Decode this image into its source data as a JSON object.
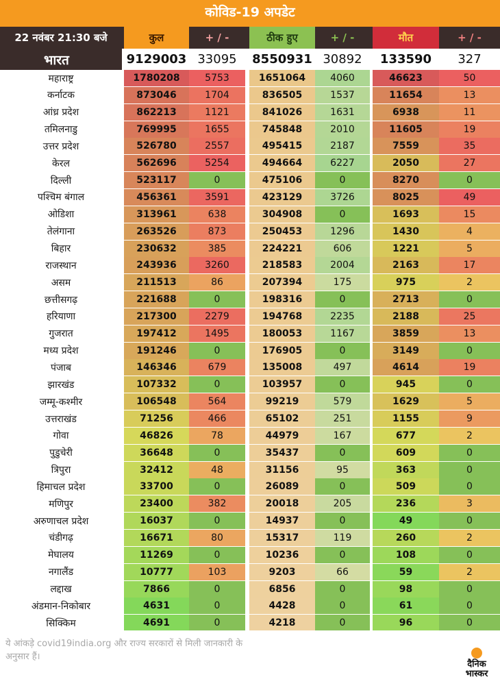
{
  "title": "कोविड-19 अपडेट",
  "header": {
    "date": "22 नवंबर  21:30 बजे",
    "cols": [
      "कुल",
      "+ / -",
      "ठीक हुए",
      "+ / -",
      "मौत",
      "+ / -"
    ]
  },
  "colors": {
    "orange": "#f59a1f",
    "header_dark": "#3a2c2a",
    "header_total": "#f59a1f",
    "header_delta": "#f2a0a0",
    "header_recovered": "#8cc152",
    "header_deaths": "#d12d3a"
  },
  "india": {
    "name": "भारत",
    "values": [
      "9129003",
      "33095",
      "8550931",
      "30892",
      "133590",
      "327"
    ]
  },
  "rows": [
    {
      "name": "महाराष्ट्र",
      "values": [
        "1780208",
        "5753",
        "1651064",
        "4060",
        "46623",
        "50"
      ]
    },
    {
      "name": "कर्नाटक",
      "values": [
        "873046",
        "1704",
        "836505",
        "1537",
        "11654",
        "13"
      ]
    },
    {
      "name": "आंध्र प्रदेश",
      "values": [
        "862213",
        "1121",
        "841026",
        "1631",
        "6938",
        "11"
      ]
    },
    {
      "name": "तमिलनाडु",
      "values": [
        "769995",
        "1655",
        "745848",
        "2010",
        "11605",
        "19"
      ]
    },
    {
      "name": "उत्तर प्रदेश",
      "values": [
        "526780",
        "2557",
        "495415",
        "2187",
        "7559",
        "35"
      ]
    },
    {
      "name": "केरल",
      "values": [
        "562696",
        "5254",
        "494664",
        "6227",
        "2050",
        "27"
      ]
    },
    {
      "name": "दिल्ली",
      "values": [
        "523117",
        "0",
        "475106",
        "0",
        "8270",
        "0"
      ]
    },
    {
      "name": "पश्चिम बंगाल",
      "values": [
        "456361",
        "3591",
        "423129",
        "3726",
        "8025",
        "49"
      ]
    },
    {
      "name": "ओडिशा",
      "values": [
        "313961",
        "638",
        "304908",
        "0",
        "1693",
        "15"
      ]
    },
    {
      "name": "तेलंगाना",
      "values": [
        "263526",
        "873",
        "250453",
        "1296",
        "1430",
        "4"
      ]
    },
    {
      "name": "बिहार",
      "values": [
        "230632",
        "385",
        "224221",
        "606",
        "1221",
        "5"
      ]
    },
    {
      "name": "राजस्थान",
      "values": [
        "243936",
        "3260",
        "218583",
        "2004",
        "2163",
        "17"
      ]
    },
    {
      "name": "असम",
      "values": [
        "211513",
        "86",
        "207394",
        "175",
        "975",
        "2"
      ]
    },
    {
      "name": "छत्तीसगढ़",
      "values": [
        "221688",
        "0",
        "198316",
        "0",
        "2713",
        "0"
      ]
    },
    {
      "name": "हरियाणा",
      "values": [
        "217300",
        "2279",
        "194768",
        "2235",
        "2188",
        "25"
      ]
    },
    {
      "name": "गुजरात",
      "values": [
        "197412",
        "1495",
        "180053",
        "1167",
        "3859",
        "13"
      ]
    },
    {
      "name": "मध्य प्रदेश",
      "values": [
        "191246",
        "0",
        "176905",
        "0",
        "3149",
        "0"
      ]
    },
    {
      "name": "पंजाब",
      "values": [
        "146346",
        "679",
        "135008",
        "497",
        "4614",
        "19"
      ]
    },
    {
      "name": "झारखंड",
      "values": [
        "107332",
        "0",
        "103957",
        "0",
        "945",
        "0"
      ]
    },
    {
      "name": "जम्मू-कश्मीर",
      "values": [
        "106548",
        "564",
        "99219",
        "579",
        "1629",
        "5"
      ]
    },
    {
      "name": "उत्तराखंड",
      "values": [
        "71256",
        "466",
        "65102",
        "251",
        "1155",
        "9"
      ]
    },
    {
      "name": "गोवा",
      "values": [
        "46826",
        "78",
        "44979",
        "167",
        "677",
        "2"
      ]
    },
    {
      "name": "पुडुचेरी",
      "values": [
        "36648",
        "0",
        "35437",
        "0",
        "609",
        "0"
      ]
    },
    {
      "name": "त्रिपुरा",
      "values": [
        "32412",
        "48",
        "31156",
        "95",
        "363",
        "0"
      ]
    },
    {
      "name": "हिमाचल प्रदेश",
      "values": [
        "33700",
        "0",
        "26089",
        "0",
        "509",
        "0"
      ]
    },
    {
      "name": "मणिपुर",
      "values": [
        "23400",
        "382",
        "20018",
        "205",
        "236",
        "3"
      ]
    },
    {
      "name": "अरुणाचल प्रदेश",
      "values": [
        "16037",
        "0",
        "14937",
        "0",
        "49",
        "0"
      ]
    },
    {
      "name": "चंडीगढ़",
      "values": [
        "16671",
        "80",
        "15317",
        "119",
        "260",
        "2"
      ]
    },
    {
      "name": "मेघालय",
      "values": [
        "11269",
        "0",
        "10236",
        "0",
        "108",
        "0"
      ]
    },
    {
      "name": "नगालैंड",
      "values": [
        "10777",
        "103",
        "9203",
        "66",
        "59",
        "2"
      ]
    },
    {
      "name": "लद्दाख",
      "values": [
        "7866",
        "0",
        "6856",
        "0",
        "98",
        "0"
      ]
    },
    {
      "name": "अंडमान-निकोबार",
      "values": [
        "4631",
        "0",
        "4428",
        "0",
        "61",
        "0"
      ]
    },
    {
      "name": "सिक्किम",
      "values": [
        "4691",
        "0",
        "4218",
        "0",
        "96",
        "0"
      ]
    }
  ],
  "footer": {
    "note": "ये आंकड़े covid19india.org और राज्य सरकारों से मिली जानकारी के अनुसार हैं।",
    "logo_line1": "दैनिक",
    "logo_line2": "भास्कर"
  }
}
